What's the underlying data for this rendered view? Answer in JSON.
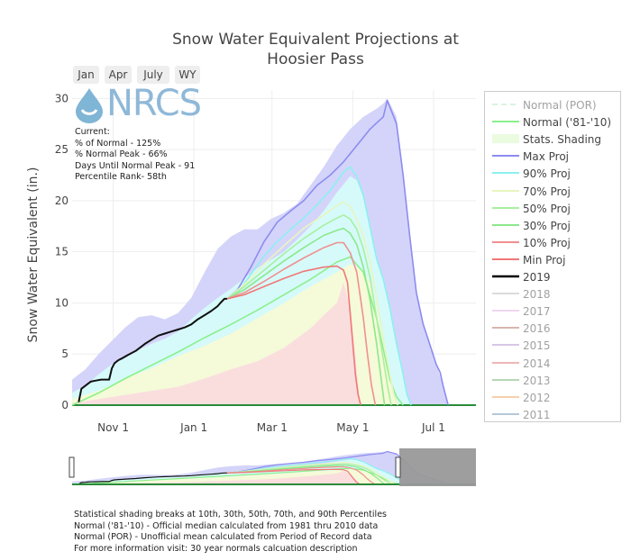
{
  "buttons": [
    "Jan",
    "Apr",
    "July",
    "WY"
  ],
  "logo": {
    "text": "NRCS"
  },
  "info": {
    "line1": "Current:",
    "line2": "% of Normal - 125%",
    "line3": "% Normal Peak - 66%",
    "line4": "Days Until Normal Peak - 91",
    "line5": "Percentile Rank- 58th"
  },
  "notes": {
    "line1": "Statistical shading breaks at 10th, 30th, 50th, 70th, and 90th Percentiles",
    "line2": "Normal ('81-'10) - Official median calculated from 1981 thru 2010 data",
    "line3": "Normal (POR) - Unofficial mean calculated from Period of Record data",
    "line4": "For more information visit: 30 year normals calcuation description"
  },
  "legend": [
    {
      "label": "Normal (POR)",
      "color": "#b7e8c0",
      "dash": true,
      "off": true
    },
    {
      "label": "Normal ('81-'10)",
      "color": "#8cf08c",
      "off": false
    },
    {
      "label": "Stats. Shading",
      "color": "#eafbe0",
      "box": true,
      "off": false
    },
    {
      "label": "Max Proj",
      "color": "#8c8cf0",
      "off": false
    },
    {
      "label": "90% Proj",
      "color": "#8cf0f0",
      "off": false
    },
    {
      "label": "70% Proj",
      "color": "#e8f5c0",
      "off": false
    },
    {
      "label": "50% Proj",
      "color": "#a8f0a0",
      "off": false
    },
    {
      "label": "30% Proj",
      "color": "#8ce88c",
      "off": false
    },
    {
      "label": "10% Proj",
      "color": "#f09090",
      "off": false
    },
    {
      "label": "Min Proj",
      "color": "#f07878",
      "off": false
    },
    {
      "label": "2019",
      "color": "#000000",
      "off": false,
      "bold": true
    },
    {
      "label": "2018",
      "color": "#b8b8b8",
      "off": true
    },
    {
      "label": "2017",
      "color": "#e0b0e0",
      "off": true
    },
    {
      "label": "2016",
      "color": "#b07060",
      "off": true
    },
    {
      "label": "2015",
      "color": "#b090d0",
      "off": true
    },
    {
      "label": "2014",
      "color": "#e07070",
      "off": true
    },
    {
      "label": "2013",
      "color": "#70b070",
      "off": true
    },
    {
      "label": "2012",
      "color": "#f0a060",
      "off": true
    },
    {
      "label": "2011",
      "color": "#7090b0",
      "off": true
    }
  ],
  "chart_data": {
    "type": "area",
    "title": "Snow Water Equivalent Projections at Hoosier Pass",
    "title_lines": [
      "Snow Water Equivalent Projections at",
      "Hoosier Pass"
    ],
    "ylabel": "Snow Water Equivalent (in.)",
    "ylim": [
      0,
      31
    ],
    "yticks": [
      0,
      5,
      10,
      15,
      20,
      25,
      30
    ],
    "xlim_days": [
      0,
      305
    ],
    "xticks": [
      {
        "day": 31,
        "label": "Nov  1"
      },
      {
        "day": 92,
        "label": "Jan  1"
      },
      {
        "day": 151,
        "label": "Mar  1"
      },
      {
        "day": 212,
        "label": "May  1"
      },
      {
        "day": 273,
        "label": "Jul  1"
      }
    ],
    "x_unit": "days since Oct 1",
    "series": [
      {
        "name": "Normal ('81-'10)",
        "color": "#8cf08c",
        "x": [
          0,
          20,
          40,
          60,
          80,
          100,
          120,
          140,
          160,
          180,
          200,
          210,
          220,
          230,
          240,
          245,
          250
        ],
        "y": [
          0,
          1.2,
          2.6,
          3.9,
          5.2,
          6.6,
          7.9,
          9.3,
          10.8,
          12.3,
          14.0,
          14.5,
          13.0,
          8.5,
          2.5,
          0.8,
          0
        ]
      },
      {
        "name": "Max Proj",
        "color": "#8c8cf0",
        "x": [
          117,
          125,
          135,
          145,
          155,
          165,
          175,
          185,
          195,
          205,
          215,
          225,
          230,
          235,
          238,
          242,
          245,
          250,
          255,
          260,
          265,
          270,
          275,
          278,
          280,
          282,
          284
        ],
        "y": [
          10.4,
          11.3,
          13.5,
          16.0,
          17.9,
          19.0,
          20.0,
          21.5,
          22.5,
          23.8,
          25.4,
          27.0,
          27.6,
          28.2,
          29.8,
          28.5,
          27.5,
          22.5,
          16.5,
          11.0,
          8.0,
          6.0,
          4.0,
          3.2,
          2.0,
          1.0,
          0
        ]
      },
      {
        "name": "90% Proj",
        "color": "#8cf0f0",
        "x": [
          117,
          125,
          135,
          145,
          155,
          165,
          175,
          185,
          195,
          205,
          210,
          215,
          220,
          225,
          230,
          235,
          240,
          245,
          250,
          253,
          256
        ],
        "y": [
          10.4,
          11.0,
          12.8,
          14.6,
          16.0,
          17.2,
          18.3,
          19.6,
          21.0,
          22.8,
          23.3,
          22.4,
          20.5,
          17.4,
          14.3,
          12.3,
          9.5,
          6.0,
          3.0,
          1.0,
          0
        ]
      },
      {
        "name": "70% Proj",
        "color": "#e8f5c0",
        "x": [
          117,
          130,
          145,
          160,
          175,
          190,
          200,
          205,
          210,
          215,
          220,
          225,
          230,
          235,
          240,
          243,
          246
        ],
        "y": [
          10.4,
          11.8,
          13.8,
          15.6,
          17.3,
          18.6,
          19.5,
          19.9,
          19.4,
          18.2,
          16.5,
          14.0,
          10.5,
          6.5,
          3.0,
          1.0,
          0
        ]
      },
      {
        "name": "50% Proj",
        "color": "#a8f0a0",
        "x": [
          117,
          130,
          145,
          160,
          175,
          190,
          200,
          205,
          210,
          215,
          220,
          225,
          230,
          235,
          238,
          241
        ],
        "y": [
          10.4,
          11.6,
          13.2,
          14.8,
          16.3,
          17.6,
          18.3,
          18.6,
          18.2,
          17.2,
          15.3,
          12.5,
          8.5,
          4.5,
          2.0,
          0
        ]
      },
      {
        "name": "30% Proj",
        "color": "#8ce88c",
        "x": [
          117,
          130,
          145,
          160,
          175,
          190,
          200,
          205,
          210,
          215,
          220,
          225,
          230,
          233,
          236
        ],
        "y": [
          10.4,
          11.3,
          12.7,
          14.1,
          15.4,
          16.6,
          17.1,
          17.3,
          16.8,
          15.7,
          13.5,
          10.3,
          6.0,
          3.0,
          0
        ]
      },
      {
        "name": "10% Proj",
        "color": "#f09090",
        "x": [
          117,
          130,
          145,
          160,
          175,
          190,
          200,
          205,
          210,
          215,
          220,
          223,
          226,
          229
        ],
        "y": [
          10.4,
          11.0,
          12.1,
          13.3,
          14.4,
          15.4,
          15.9,
          15.9,
          14.9,
          13.0,
          8.5,
          5.0,
          2.0,
          0
        ]
      },
      {
        "name": "Min Proj",
        "color": "#f07878",
        "x": [
          117,
          130,
          145,
          160,
          175,
          190,
          200,
          205,
          208,
          210,
          212,
          214,
          216,
          218
        ],
        "y": [
          10.4,
          10.8,
          11.6,
          12.4,
          13.1,
          13.5,
          13.6,
          13.2,
          12.0,
          9.0,
          6.0,
          3.0,
          1.0,
          0
        ]
      },
      {
        "name": "2019",
        "color": "#000000",
        "x": [
          5,
          7,
          10,
          12,
          14,
          18,
          22,
          28,
          30,
          32,
          35,
          38,
          42,
          48,
          55,
          60,
          65,
          70,
          75,
          80,
          85,
          90,
          95,
          100,
          105,
          110,
          112,
          115,
          117
        ],
        "y": [
          0.3,
          1.6,
          1.9,
          2.1,
          2.3,
          2.4,
          2.5,
          2.5,
          3.6,
          4.1,
          4.4,
          4.6,
          4.9,
          5.3,
          6.0,
          6.4,
          6.8,
          7.0,
          7.2,
          7.4,
          7.6,
          7.9,
          8.4,
          8.8,
          9.2,
          9.7,
          10.0,
          10.4,
          10.4
        ]
      }
    ],
    "shading": [
      {
        "name": "max-band",
        "color": "#d4d4fa",
        "x": [
          0,
          10,
          20,
          30,
          40,
          50,
          60,
          70,
          80,
          90,
          100,
          110,
          120,
          130,
          140,
          150,
          160,
          170,
          180,
          190,
          200,
          210,
          220,
          230,
          235,
          238,
          245,
          250,
          255,
          260,
          265,
          270,
          275,
          280,
          284
        ],
        "y": [
          2.5,
          3.5,
          5.0,
          6.3,
          7.6,
          8.6,
          8.8,
          8.4,
          9.0,
          10.5,
          13.0,
          15.3,
          16.5,
          17.2,
          17.2,
          18.2,
          18.8,
          19.7,
          21.5,
          23.3,
          25.4,
          27.0,
          28.2,
          29.0,
          29.5,
          30.0,
          28.2,
          22.5,
          16.5,
          11.0,
          8.0,
          6.0,
          4.0,
          2.0,
          0
        ]
      },
      {
        "name": "90-band",
        "color": "#d6fafa",
        "x": [
          0,
          10,
          20,
          30,
          40,
          50,
          60,
          70,
          80,
          90,
          100,
          110,
          120,
          130,
          140,
          150,
          160,
          170,
          180,
          190,
          200,
          210,
          215,
          220,
          225,
          230,
          235,
          240,
          245,
          250,
          253,
          256
        ],
        "y": [
          1.2,
          1.9,
          3.0,
          4.0,
          4.6,
          5.4,
          6.0,
          6.5,
          7.2,
          8.4,
          9.5,
          10.5,
          11.4,
          12.4,
          13.4,
          14.2,
          15.0,
          16.2,
          17.5,
          19.0,
          20.8,
          22.4,
          22.0,
          20.3,
          17.3,
          14.3,
          12.2,
          9.5,
          6.0,
          3.0,
          1.0,
          0
        ]
      },
      {
        "name": "70-band",
        "color": "#f5fad8",
        "x": [
          0,
          20,
          40,
          60,
          80,
          100,
          120,
          140,
          160,
          180,
          200,
          210,
          220,
          225,
          230,
          235,
          240,
          243,
          246
        ],
        "y": [
          0.6,
          1.4,
          2.6,
          3.6,
          4.8,
          5.8,
          7.0,
          8.5,
          10.0,
          11.6,
          13.0,
          13.8,
          13.2,
          12.0,
          9.5,
          6.0,
          3.0,
          1.0,
          0
        ]
      },
      {
        "name": "30-band",
        "color": "#fadede",
        "x": [
          0,
          20,
          40,
          60,
          80,
          100,
          120,
          140,
          160,
          180,
          190,
          200,
          205,
          210,
          213,
          216,
          218
        ],
        "y": [
          0.2,
          0.6,
          1.0,
          1.4,
          1.8,
          2.6,
          3.5,
          4.3,
          5.6,
          7.5,
          8.8,
          10.0,
          12.0,
          9.5,
          6.0,
          2.0,
          0
        ]
      }
    ]
  }
}
